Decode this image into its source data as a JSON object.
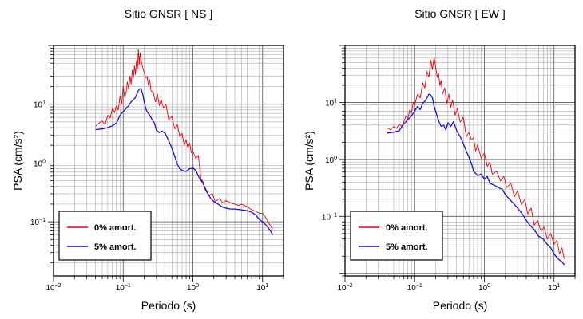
{
  "figure": {
    "background": "#ffffff"
  },
  "chart_data": [
    {
      "type": "line",
      "title": "Sitio GNSR [ NS ]",
      "xlabel": "Periodo (s)",
      "ylabel": "PSA (cm/s²)",
      "xscale": "log",
      "yscale": "log",
      "xlim": [
        0.01,
        20
      ],
      "ylim": [
        0.012,
        100
      ],
      "xticks": [
        0.01,
        0.1,
        1,
        10
      ],
      "yticks": [
        0.1,
        1,
        10
      ],
      "grid": true,
      "legend": {
        "position": "bottom-left"
      },
      "series": [
        {
          "name": "0% amort.",
          "color": "#e8000a",
          "x": [
            0.04,
            0.045,
            0.05,
            0.055,
            0.06,
            0.065,
            0.07,
            0.075,
            0.08,
            0.085,
            0.09,
            0.095,
            0.1,
            0.105,
            0.11,
            0.115,
            0.12,
            0.125,
            0.13,
            0.135,
            0.14,
            0.145,
            0.15,
            0.155,
            0.16,
            0.165,
            0.17,
            0.175,
            0.18,
            0.19,
            0.2,
            0.21,
            0.22,
            0.23,
            0.24,
            0.25,
            0.27,
            0.29,
            0.31,
            0.33,
            0.35,
            0.38,
            0.41,
            0.45,
            0.5,
            0.55,
            0.6,
            0.65,
            0.7,
            0.75,
            0.8,
            0.85,
            0.9,
            0.95,
            1.0,
            1.1,
            1.2,
            1.3,
            1.4,
            1.5,
            1.7,
            1.9,
            2.1,
            2.4,
            2.7,
            3.0,
            3.5,
            4.0,
            4.5,
            5.0,
            6.0,
            7.0,
            8.0,
            9.0,
            10,
            11,
            12,
            13,
            14
          ],
          "y": [
            4.2,
            4.8,
            5.2,
            4.5,
            6.5,
            5.8,
            8.5,
            7.2,
            9.5,
            8.0,
            14,
            10,
            20,
            13,
            16,
            24,
            18,
            30,
            22,
            38,
            28,
            45,
            32,
            55,
            40,
            85,
            48,
            75,
            58,
            42,
            35,
            28,
            30,
            21,
            26,
            17,
            16,
            11,
            15,
            9.5,
            12,
            8.5,
            10,
            5.5,
            6.2,
            3.8,
            4.5,
            2.8,
            3.2,
            2.0,
            2.5,
            1.8,
            2.2,
            1.5,
            1.6,
            1.2,
            1.35,
            0.55,
            0.48,
            0.35,
            0.28,
            0.3,
            0.22,
            0.25,
            0.21,
            0.23,
            0.21,
            0.2,
            0.19,
            0.2,
            0.18,
            0.16,
            0.15,
            0.14,
            0.14,
            0.12,
            0.1,
            0.085,
            0.075
          ]
        },
        {
          "name": "5% amort.",
          "color": "#1010e0",
          "x": [
            0.04,
            0.05,
            0.06,
            0.07,
            0.08,
            0.09,
            0.1,
            0.11,
            0.12,
            0.13,
            0.14,
            0.15,
            0.16,
            0.17,
            0.18,
            0.19,
            0.2,
            0.21,
            0.22,
            0.24,
            0.26,
            0.28,
            0.3,
            0.33,
            0.36,
            0.4,
            0.45,
            0.5,
            0.55,
            0.6,
            0.65,
            0.7,
            0.8,
            0.9,
            1.0,
            1.1,
            1.2,
            1.4,
            1.6,
            1.8,
            2.0,
            2.3,
            2.6,
            3.0,
            3.5,
            4.0,
            5.0,
            6.0,
            7.0,
            8.0,
            9.0,
            10,
            11,
            12,
            13,
            14
          ],
          "y": [
            3.7,
            3.8,
            4.0,
            4.3,
            4.8,
            6.5,
            7.5,
            8.5,
            9.5,
            11,
            12,
            13,
            16,
            18,
            18.5,
            15,
            11,
            8.5,
            7.5,
            6.5,
            5.5,
            4.8,
            3.6,
            3.3,
            3.5,
            3.2,
            2.4,
            1.8,
            1.3,
            0.95,
            0.8,
            0.75,
            0.72,
            0.8,
            0.82,
            0.75,
            0.6,
            0.45,
            0.32,
            0.25,
            0.22,
            0.2,
            0.18,
            0.17,
            0.165,
            0.165,
            0.16,
            0.155,
            0.145,
            0.13,
            0.11,
            0.1,
            0.09,
            0.08,
            0.07,
            0.06
          ]
        }
      ]
    },
    {
      "type": "line",
      "title": "Sitio GNSR [ EW ]",
      "xlabel": "Periodo (s)",
      "ylabel": "PSA (cm/s²)",
      "xscale": "log",
      "yscale": "log",
      "xlim": [
        0.01,
        20
      ],
      "ylim": [
        0.009,
        100
      ],
      "xticks": [
        0.01,
        0.1,
        1,
        10
      ],
      "yticks": [
        0.1,
        1,
        10
      ],
      "grid": true,
      "legend": {
        "position": "bottom-left"
      },
      "series": [
        {
          "name": "0% amort.",
          "color": "#e8000a",
          "x": [
            0.04,
            0.045,
            0.05,
            0.055,
            0.06,
            0.065,
            0.07,
            0.075,
            0.08,
            0.085,
            0.09,
            0.095,
            0.1,
            0.11,
            0.12,
            0.13,
            0.14,
            0.15,
            0.16,
            0.17,
            0.18,
            0.19,
            0.2,
            0.21,
            0.22,
            0.23,
            0.24,
            0.25,
            0.27,
            0.29,
            0.31,
            0.33,
            0.35,
            0.38,
            0.41,
            0.45,
            0.5,
            0.55,
            0.6,
            0.65,
            0.7,
            0.75,
            0.8,
            0.9,
            1.0,
            1.1,
            1.2,
            1.3,
            1.5,
            1.7,
            1.9,
            2.1,
            2.4,
            2.7,
            3.0,
            3.4,
            3.8,
            4.2,
            4.7,
            5.2,
            5.8,
            6.5,
            7.2,
            8.0,
            9.0,
            10,
            11,
            12,
            13,
            14
          ],
          "y": [
            3.6,
            3.3,
            3.8,
            3.5,
            4.2,
            3.8,
            4.6,
            5.8,
            5.2,
            7.5,
            6.5,
            10,
            9.0,
            14,
            12,
            22,
            18,
            35,
            28,
            55,
            38,
            62,
            42,
            28,
            32,
            20,
            24,
            14,
            18,
            9.5,
            14,
            8.2,
            11,
            6.0,
            7.8,
            4.5,
            5.5,
            2.5,
            3.0,
            2.2,
            2.4,
            1.4,
            1.8,
            1.05,
            1.3,
            0.75,
            0.9,
            0.55,
            0.62,
            0.42,
            0.5,
            0.32,
            0.38,
            0.22,
            0.28,
            0.16,
            0.2,
            0.11,
            0.14,
            0.07,
            0.085,
            0.055,
            0.065,
            0.04,
            0.05,
            0.032,
            0.038,
            0.022,
            0.028,
            0.018
          ]
        },
        {
          "name": "5% amort.",
          "color": "#1010e0",
          "x": [
            0.04,
            0.05,
            0.06,
            0.07,
            0.08,
            0.09,
            0.1,
            0.11,
            0.12,
            0.13,
            0.14,
            0.15,
            0.16,
            0.17,
            0.18,
            0.19,
            0.2,
            0.22,
            0.24,
            0.26,
            0.28,
            0.3,
            0.33,
            0.36,
            0.4,
            0.45,
            0.5,
            0.55,
            0.6,
            0.65,
            0.7,
            0.8,
            0.9,
            1.0,
            1.1,
            1.2,
            1.4,
            1.6,
            1.8,
            2.0,
            2.3,
            2.6,
            3.0,
            3.5,
            4.0,
            4.5,
            5.0,
            6.0,
            7.0,
            8.0,
            9.0,
            10,
            11,
            12,
            13,
            14
          ],
          "y": [
            2.9,
            3.0,
            3.2,
            4.2,
            5.0,
            5.8,
            7.0,
            8.5,
            7.5,
            9.5,
            10.5,
            12,
            14,
            13.5,
            12,
            8.5,
            7.0,
            4.8,
            3.8,
            4.0,
            3.3,
            4.4,
            3.8,
            4.6,
            3.2,
            2.5,
            1.9,
            1.4,
            1.1,
            0.85,
            0.62,
            0.52,
            0.55,
            0.45,
            0.5,
            0.38,
            0.35,
            0.32,
            0.3,
            0.24,
            0.2,
            0.17,
            0.14,
            0.11,
            0.085,
            0.07,
            0.062,
            0.045,
            0.04,
            0.032,
            0.028,
            0.022,
            0.019,
            0.017,
            0.016,
            0.014
          ]
        }
      ]
    }
  ]
}
